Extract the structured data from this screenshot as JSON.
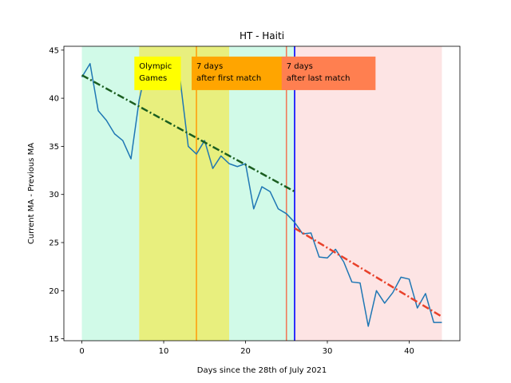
{
  "chart_data": {
    "type": "line",
    "title": "HT - Haiti",
    "xlabel": "Days since the 28th of July 2021",
    "ylabel": "Current MA - Previous MA",
    "xlim": [
      -2.2,
      46.2
    ],
    "ylim": [
      14.8,
      45.4
    ],
    "xticks": [
      0,
      10,
      20,
      30,
      40
    ],
    "yticks": [
      15,
      20,
      25,
      30,
      35,
      40,
      45
    ],
    "grid": false,
    "series": [
      {
        "color": "#1f77b4",
        "x": [
          0,
          1,
          2,
          3,
          4,
          5,
          6,
          7,
          8,
          9,
          10,
          11,
          12,
          13,
          14,
          15,
          16,
          17,
          18,
          19,
          20,
          21,
          22,
          23,
          24,
          25,
          26,
          27,
          28,
          29,
          30,
          31,
          32,
          33,
          34,
          35,
          36,
          37,
          38,
          39,
          40,
          41,
          42,
          43,
          44
        ],
        "values": [
          42.2,
          43.6,
          38.7,
          37.7,
          36.3,
          35.6,
          33.7,
          39.8,
          43.6,
          43.4,
          43.7,
          44.0,
          42.0,
          35.0,
          34.2,
          35.6,
          32.7,
          34.0,
          33.2,
          32.9,
          33.2,
          28.5,
          30.8,
          30.3,
          28.5,
          28.0,
          27.1,
          25.9,
          26.0,
          23.5,
          23.4,
          24.3,
          23.0,
          20.9,
          20.8,
          16.3,
          20.0,
          18.7,
          19.8,
          21.4,
          21.2,
          18.2,
          19.7,
          16.7,
          16.7
        ]
      }
    ],
    "trend_lines": [
      {
        "color": "#1b5e20",
        "x": [
          0,
          26
        ],
        "y": [
          42.4,
          30.3
        ]
      },
      {
        "color": "#e8412a",
        "x": [
          26,
          44
        ],
        "y": [
          26.5,
          17.3
        ]
      }
    ],
    "regions": [
      {
        "x": [
          0,
          7
        ],
        "color": "#d1fae8"
      },
      {
        "x": [
          7,
          18
        ],
        "color": "#e8ef7e"
      },
      {
        "x": [
          18,
          26
        ],
        "color": "#d1fae8"
      },
      {
        "x": [
          26,
          44
        ],
        "color": "#fde4e4"
      }
    ],
    "vertical_lines": [
      {
        "x": 14,
        "color": "#ff9f0e"
      },
      {
        "x": 25,
        "color": "#ef7b5a"
      },
      {
        "x": 26,
        "color": "#0000ff"
      }
    ],
    "annotations": [
      {
        "lines": [
          "Olympic",
          "Games"
        ],
        "x": 7,
        "y": 43.5,
        "box_color": "#ffff00"
      },
      {
        "lines": [
          "7 days",
          "after first match"
        ],
        "x": 14,
        "y": 43.5,
        "box_color": "#ffa500"
      },
      {
        "lines": [
          "7 days",
          "after last match"
        ],
        "x": 25,
        "y": 43.5,
        "box_color": "#ff7f50"
      }
    ]
  }
}
